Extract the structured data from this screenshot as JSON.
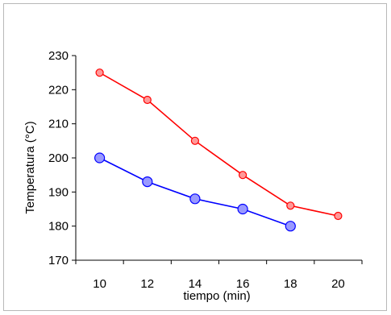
{
  "chart_data": {
    "type": "line",
    "title": "",
    "xlabel": "tiempo (min)",
    "ylabel": "Temperatura (°C)",
    "x_ticks": [
      10,
      12,
      14,
      16,
      18,
      20
    ],
    "y_ticks": [
      170,
      180,
      190,
      200,
      210,
      220,
      230
    ],
    "xlim": [
      9,
      21
    ],
    "ylim": [
      170,
      230
    ],
    "grid": false,
    "legend": "none",
    "series": [
      {
        "color": "#ff0000",
        "marker_fill": "#ff9999",
        "x": [
          10,
          12,
          14,
          16,
          18,
          20
        ],
        "y": [
          225,
          217,
          205,
          195,
          186,
          183
        ]
      },
      {
        "color": "#0000ff",
        "marker_fill": "#9999ff",
        "x": [
          10,
          12,
          14,
          16,
          18
        ],
        "y": [
          200,
          193,
          188,
          185,
          180
        ]
      }
    ]
  }
}
